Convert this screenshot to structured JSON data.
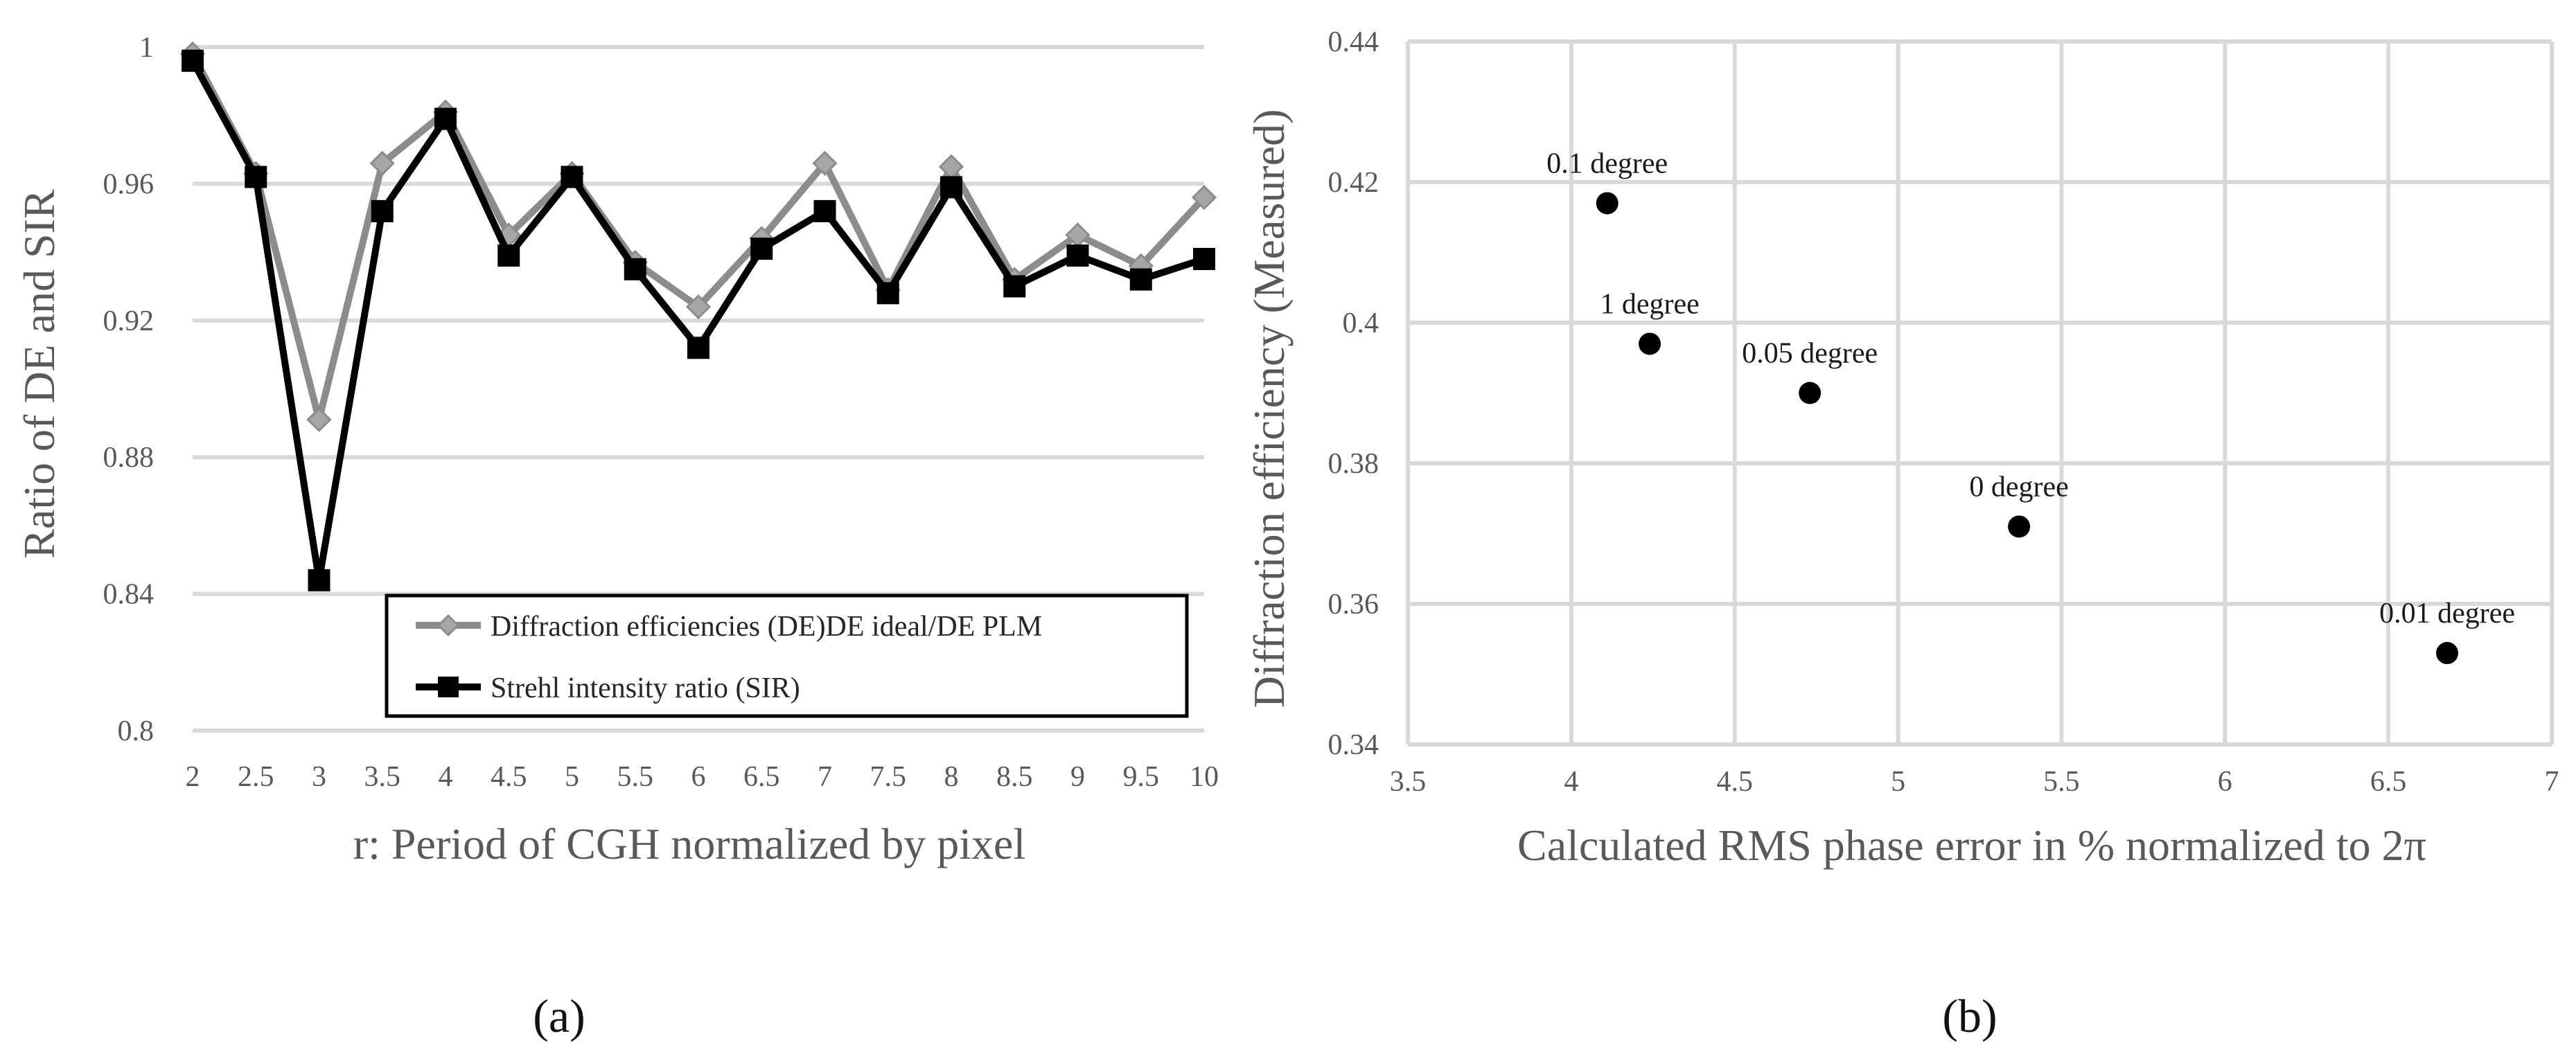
{
  "chart_data": [
    {
      "type": "line",
      "panel_label": "(a)",
      "xlabel": "r: Period of CGH normalized by pixel",
      "ylabel": "Ratio of DE and SIR",
      "categories": [
        "2",
        "2.5",
        "3",
        "3.5",
        "4",
        "4.5",
        "5",
        "5.5",
        "6",
        "6.5",
        "7",
        "7.5",
        "8",
        "8.5",
        "9",
        "9.5",
        "10"
      ],
      "ylim": [
        0.8,
        1.0
      ],
      "y_ticks": [
        "0.8",
        "0.84",
        "0.88",
        "0.92",
        "0.96",
        "1"
      ],
      "grid": "horizontal",
      "legend_position": "bottom-right",
      "series": [
        {
          "name": "Diffraction efficiencies (DE)DE ideal/DE PLM",
          "color": "#8c8c8c",
          "marker": "diamond",
          "values": [
            0.998,
            0.963,
            0.891,
            0.966,
            0.981,
            0.945,
            0.963,
            0.937,
            0.924,
            0.944,
            0.966,
            0.929,
            0.965,
            0.932,
            0.945,
            0.936,
            0.956
          ]
        },
        {
          "name": "Strehl intensity ratio (SIR)",
          "color": "#000000",
          "marker": "square",
          "values": [
            0.996,
            0.962,
            0.844,
            0.952,
            0.979,
            0.939,
            0.962,
            0.935,
            0.912,
            0.941,
            0.952,
            0.928,
            0.959,
            0.93,
            0.939,
            0.932,
            0.938
          ]
        }
      ]
    },
    {
      "type": "scatter",
      "panel_label": "(b)",
      "xlabel": "Calculated RMS phase error in % normalized to 2π",
      "ylabel": "Diffraction efficiency (Measured)",
      "xlim": [
        3.5,
        7
      ],
      "ylim": [
        0.34,
        0.44
      ],
      "x_ticks": [
        "3.5",
        "4",
        "4.5",
        "5",
        "5.5",
        "6",
        "6.5",
        "7"
      ],
      "y_ticks": [
        "0.34",
        "0.36",
        "0.38",
        "0.4",
        "0.42",
        "0.44"
      ],
      "grid": "both",
      "marker_color": "#000000",
      "points": [
        {
          "label": "0.1 degree",
          "x": 4.11,
          "y": 0.417
        },
        {
          "label": "1 degree",
          "x": 4.24,
          "y": 0.397
        },
        {
          "label": "0.05 degree",
          "x": 4.73,
          "y": 0.39
        },
        {
          "label": "0 degree",
          "x": 5.37,
          "y": 0.371
        },
        {
          "label": "0.01 degree",
          "x": 6.68,
          "y": 0.353
        }
      ]
    }
  ]
}
